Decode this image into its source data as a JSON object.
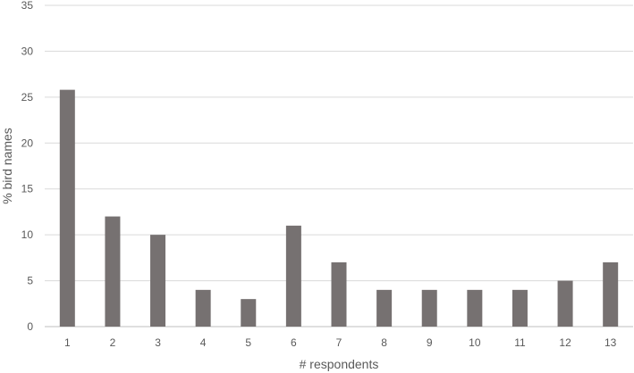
{
  "chart_data": {
    "type": "bar",
    "title": "",
    "xlabel": "# respondents",
    "ylabel": "% bird names",
    "categories": [
      "1",
      "2",
      "3",
      "4",
      "5",
      "6",
      "7",
      "8",
      "9",
      "10",
      "11",
      "12",
      "13"
    ],
    "values": [
      25.8,
      12,
      10,
      4,
      3,
      11,
      7,
      4,
      4,
      4,
      4,
      5,
      7
    ],
    "ylim": [
      0,
      35
    ],
    "yticks": [
      0,
      5,
      10,
      15,
      20,
      25,
      30,
      35
    ],
    "grid": true,
    "legend": "none",
    "colors": {
      "bar": "#767171",
      "gridline": "#d9d9d9",
      "axis_line": "#bfbfbf",
      "text": "#595959"
    }
  }
}
